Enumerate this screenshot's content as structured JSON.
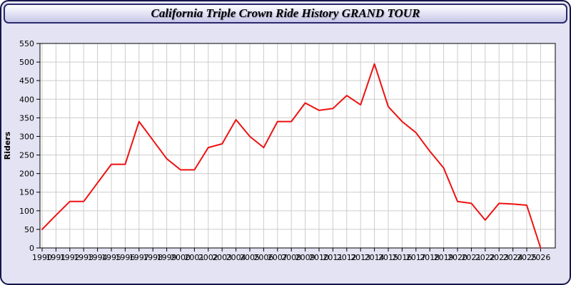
{
  "window": {
    "title": "California Triple Crown Ride History GRAND TOUR"
  },
  "chart_data": {
    "type": "line",
    "title": "California Triple Crown Ride History GRAND TOUR",
    "xlabel": "",
    "ylabel": "Riders",
    "series_name": "Riders",
    "x": [
      1990,
      1991,
      1992,
      1993,
      1994,
      1995,
      1996,
      1997,
      1998,
      1999,
      2000,
      2001,
      2002,
      2003,
      2004,
      2005,
      2006,
      2007,
      2008,
      2009,
      2010,
      2011,
      2012,
      2013,
      2014,
      2015,
      2016,
      2017,
      2018,
      2019,
      2020,
      2021,
      2022,
      2023,
      2024,
      2025,
      2026
    ],
    "values": [
      50,
      88,
      125,
      125,
      175,
      225,
      225,
      340,
      290,
      240,
      210,
      210,
      270,
      280,
      345,
      300,
      270,
      340,
      340,
      390,
      370,
      375,
      410,
      385,
      495,
      380,
      340,
      310,
      260,
      215,
      125,
      120,
      75,
      120,
      118,
      115,
      0
    ],
    "ylim": [
      0,
      550
    ],
    "ytick_step": 50,
    "grid": true,
    "legend_position": "none"
  },
  "colors": {
    "window_background": "#e3e3f3",
    "window_border": "#15154a",
    "titlebar_border": "#2a2a6e",
    "plot_background": "#ffffff",
    "gridline": "#cccccc",
    "axis": "#000000",
    "line": "#ee1111",
    "label_text": "#000000"
  }
}
